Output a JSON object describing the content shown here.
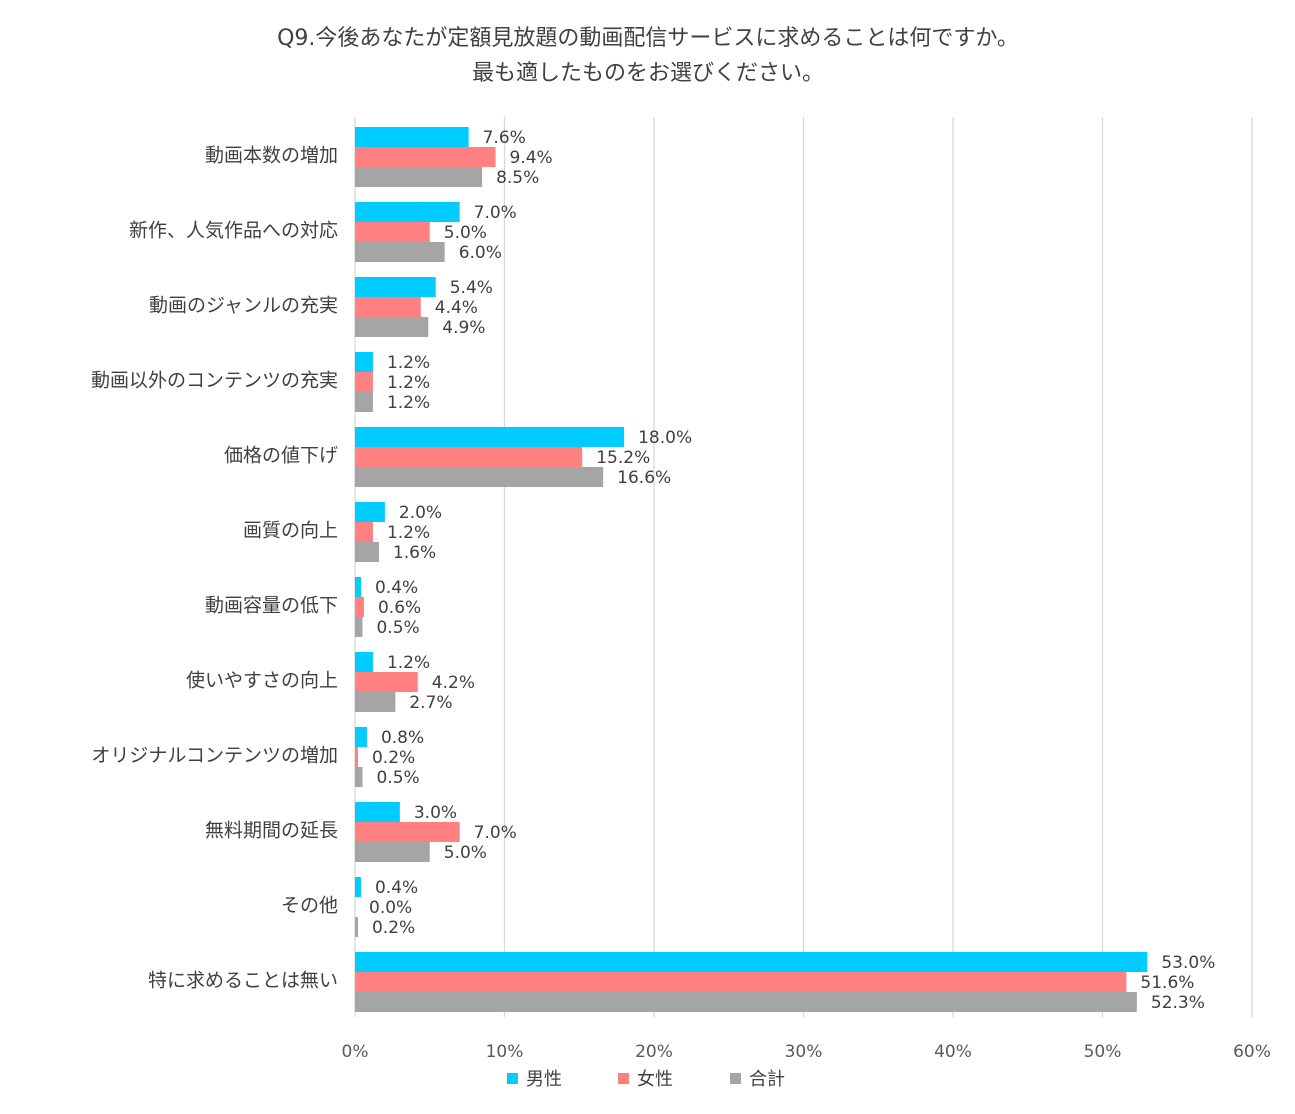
{
  "chart_data": {
    "type": "bar",
    "orientation": "horizontal",
    "title_lines": [
      "Q9.今後あなたが定額見放題の動画配信サービスに求めることは何ですか。",
      "最も適したものをお選びください。"
    ],
    "categories": [
      "動画本数の増加",
      "新作、人気作品への対応",
      "動画のジャンルの充実",
      "動画以外のコンテンツの充実",
      "価格の値下げ",
      "画質の向上",
      "動画容量の低下",
      "使いやすさの向上",
      "オリジナルコンテンツの増加",
      "無料期間の延長",
      "その他",
      "特に求めることは無い"
    ],
    "series": [
      {
        "name": "男性",
        "color": "#00CCFF",
        "values": [
          7.6,
          7.0,
          5.4,
          1.2,
          18.0,
          2.0,
          0.4,
          1.2,
          0.8,
          3.0,
          0.4,
          53.0
        ],
        "labels": [
          "7.6%",
          "7.0%",
          "5.4%",
          "1.2%",
          "18.0%",
          "2.0%",
          "0.4%",
          "1.2%",
          "0.8%",
          "3.0%",
          "0.4%",
          "53.0%"
        ]
      },
      {
        "name": "女性",
        "color": "#FF8080",
        "values": [
          9.4,
          5.0,
          4.4,
          1.2,
          15.2,
          1.2,
          0.6,
          4.2,
          0.2,
          7.0,
          0.0,
          51.6
        ],
        "labels": [
          "9.4%",
          "5.0%",
          "4.4%",
          "1.2%",
          "15.2%",
          "1.2%",
          "0.6%",
          "4.2%",
          "0.2%",
          "7.0%",
          "0.0%",
          "51.6%"
        ]
      },
      {
        "name": "合計",
        "color": "#A5A5A5",
        "values": [
          8.5,
          6.0,
          4.9,
          1.2,
          16.6,
          1.6,
          0.5,
          2.7,
          0.5,
          5.0,
          0.2,
          52.3
        ],
        "labels": [
          "8.5%",
          "6.0%",
          "4.9%",
          "1.2%",
          "16.6%",
          "1.6%",
          "0.5%",
          "2.7%",
          "0.5%",
          "5.0%",
          "0.2%",
          "52.3%"
        ]
      }
    ],
    "xlim": [
      0,
      60
    ],
    "x_ticks": [
      "0%",
      "10%",
      "20%",
      "30%",
      "40%",
      "50%",
      "60%"
    ],
    "grid": true,
    "gridline_color": "#D9D9D9",
    "legend_position": "bottom"
  }
}
